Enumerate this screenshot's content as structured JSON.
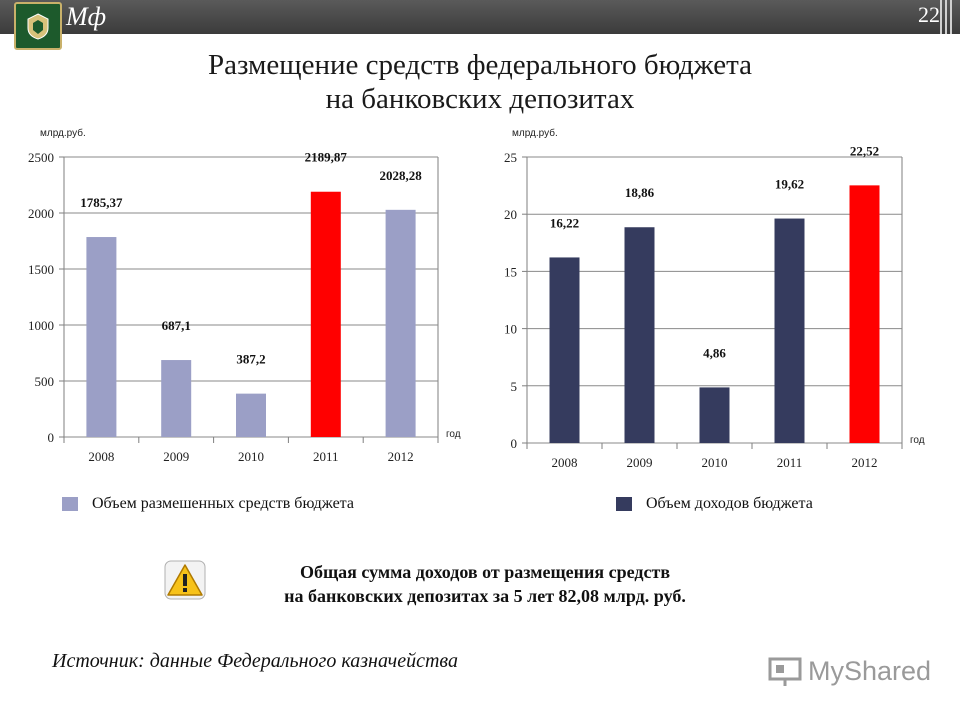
{
  "header": {
    "logo_text": "Мф",
    "page_number": "22"
  },
  "title_line1": "Размещение средств федерального бюджета",
  "title_line2": "на банковских депозитах",
  "chart_data": [
    {
      "type": "bar",
      "unit_label": "млрд.руб.",
      "x_axis_label": "год",
      "categories": [
        "2008",
        "2009",
        "2010",
        "2011",
        "2012"
      ],
      "values": [
        1785.37,
        687.1,
        387.2,
        2189.87,
        2028.28
      ],
      "data_labels": [
        "1785,37",
        "687,1",
        "387,2",
        "2189,87",
        "2028,28"
      ],
      "ylim": [
        0,
        2500
      ],
      "yticks": [
        0,
        500,
        1000,
        1500,
        2000,
        2500
      ],
      "colors": [
        "#9b9fc6",
        "#9b9fc6",
        "#9b9fc6",
        "#ff0000",
        "#9b9fc6"
      ],
      "legend": "Объем размешенных средств бюджета",
      "legend_color": "#9b9fc6",
      "grid": true
    },
    {
      "type": "bar",
      "unit_label": "млрд.руб.",
      "x_axis_label": "год",
      "categories": [
        "2008",
        "2009",
        "2010",
        "2011",
        "2012"
      ],
      "values": [
        16.22,
        18.86,
        4.86,
        19.62,
        22.52
      ],
      "data_labels": [
        "16,22",
        "18,86",
        "4,86",
        "19,62",
        "22,52"
      ],
      "ylim": [
        0,
        25
      ],
      "yticks": [
        0,
        5,
        10,
        15,
        20,
        25
      ],
      "colors": [
        "#353b5e",
        "#353b5e",
        "#353b5e",
        "#353b5e",
        "#ff0000"
      ],
      "legend": "Объем доходов бюджета",
      "legend_color": "#353b5e",
      "grid": true
    }
  ],
  "note_line1": "Общая сумма доходов от размещения средств",
  "note_line2": "на банковских депозитах за 5 лет  82,08 млрд. руб.",
  "source": "Источник: данные Федерального казначейства",
  "brand": "MyShared"
}
